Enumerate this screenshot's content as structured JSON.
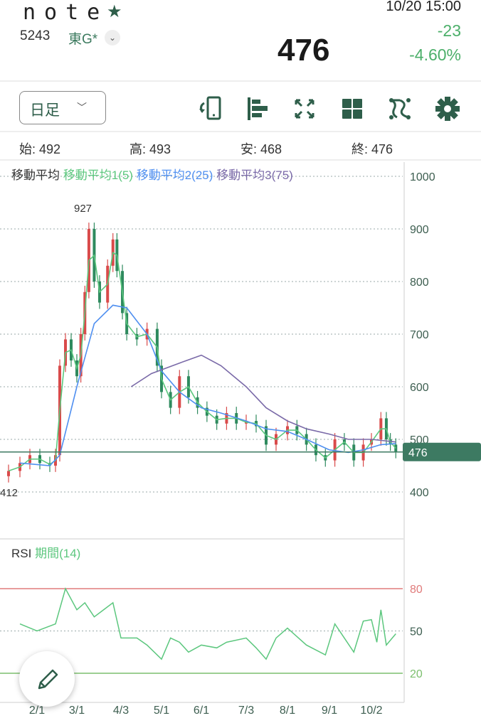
{
  "header": {
    "name": "note",
    "favorite_icon": "star-icon",
    "code": "5243",
    "market": "東G*",
    "market_menu_icon": "chevron-down-icon",
    "price": "476",
    "datetime": "10/20 15:00",
    "change": "-23",
    "change_pct": "-4.60%"
  },
  "toolbar": {
    "period": "日足",
    "period_icon": "chevron-down-icon",
    "icons": [
      "rotate-phone-icon",
      "align-left-icon",
      "fullscreen-icon",
      "grid-layout-icon",
      "chart-draw-icon",
      "gear-icon"
    ]
  },
  "ohlc": {
    "open": "始: 492",
    "high": "高: 493",
    "low": "安: 468",
    "close": "終: 476"
  },
  "colors": {
    "up": "#d94a4a",
    "down": "#2e8a5e",
    "ma1": "#5cc77e",
    "ma2": "#4f8ff0",
    "ma3": "#7a6aa8",
    "accent": "#3d7a62",
    "rsi": "#5cc77e"
  },
  "legend": {
    "title": "移動平均",
    "ma1": "移動平均1(5)",
    "ma2": "移動平均2(25)",
    "ma3": "移動平均3(75)"
  },
  "rsi_legend": {
    "title": "RSI",
    "period": "期間(14)"
  },
  "edit_icon": "pencil-icon",
  "chart_data": {
    "type": "candlestick",
    "ylim": [
      400,
      1000
    ],
    "yticks": [
      "1000",
      "900",
      "800",
      "700",
      "600",
      "500",
      "400"
    ],
    "xticks": [
      "2/1",
      "3/1",
      "4/3",
      "5/1",
      "6/1",
      "7/3",
      "8/1",
      "9/1",
      "10/2"
    ],
    "max_label": "927",
    "min_label": "412",
    "last_label": "476",
    "last": 476,
    "candles": [
      [
        "1/12",
        440
      ],
      [
        "1/20",
        455
      ],
      [
        "1/27",
        470
      ],
      [
        "2/3",
        455
      ],
      [
        "2/10",
        450
      ],
      [
        "2/14",
        470
      ],
      [
        "2/17",
        640
      ],
      [
        "2/21",
        690
      ],
      [
        "2/25",
        650
      ],
      [
        "3/1",
        620
      ],
      [
        "3/4",
        700
      ],
      [
        "3/7",
        780
      ],
      [
        "3/10",
        900
      ],
      [
        "3/14",
        800
      ],
      [
        "3/18",
        760
      ],
      [
        "3/24",
        830
      ],
      [
        "3/28",
        880
      ],
      [
        "3/31",
        820
      ],
      [
        "4/4",
        740
      ],
      [
        "4/7",
        700
      ],
      [
        "4/14",
        690
      ],
      [
        "4/21",
        710
      ],
      [
        "4/28",
        640
      ],
      [
        "5/1",
        590
      ],
      [
        "5/8",
        560
      ],
      [
        "5/15",
        620
      ],
      [
        "5/22",
        580
      ],
      [
        "5/29",
        560
      ],
      [
        "6/5",
        545
      ],
      [
        "6/12",
        530
      ],
      [
        "6/19",
        550
      ],
      [
        "6/26",
        530
      ],
      [
        "7/3",
        535
      ],
      [
        "7/10",
        525
      ],
      [
        "7/17",
        490
      ],
      [
        "7/24",
        510
      ],
      [
        "8/1",
        525
      ],
      [
        "8/8",
        510
      ],
      [
        "8/15",
        490
      ],
      [
        "8/22",
        470
      ],
      [
        "8/29",
        460
      ],
      [
        "9/5",
        500
      ],
      [
        "9/12",
        490
      ],
      [
        "9/19",
        460
      ],
      [
        "9/26",
        490
      ],
      [
        "10/2",
        500
      ],
      [
        "10/9",
        540
      ],
      [
        "10/13",
        500
      ],
      [
        "10/16",
        490
      ],
      [
        "10/20",
        476
      ]
    ],
    "ma2": [
      [
        "1/20",
        455
      ],
      [
        "2/10",
        450
      ],
      [
        "2/17",
        470
      ],
      [
        "3/1",
        600
      ],
      [
        "3/14",
        720
      ],
      [
        "3/28",
        755
      ],
      [
        "4/7",
        750
      ],
      [
        "4/21",
        700
      ],
      [
        "5/1",
        630
      ],
      [
        "5/15",
        590
      ],
      [
        "6/1",
        560
      ],
      [
        "6/15",
        550
      ],
      [
        "7/3",
        535
      ],
      [
        "7/17",
        520
      ],
      [
        "8/1",
        515
      ],
      [
        "8/15",
        500
      ],
      [
        "9/1",
        480
      ],
      [
        "9/15",
        475
      ],
      [
        "9/26",
        480
      ],
      [
        "10/9",
        490
      ],
      [
        "10/20",
        492
      ]
    ],
    "ma3": [
      [
        "4/10",
        600
      ],
      [
        "4/24",
        625
      ],
      [
        "5/15",
        645
      ],
      [
        "6/1",
        660
      ],
      [
        "6/15",
        640
      ],
      [
        "7/3",
        600
      ],
      [
        "7/17",
        560
      ],
      [
        "8/1",
        535
      ],
      [
        "8/15",
        520
      ],
      [
        "9/1",
        510
      ],
      [
        "9/15",
        500
      ],
      [
        "10/2",
        500
      ],
      [
        "10/20",
        495
      ]
    ],
    "rsi": {
      "ylim": [
        0,
        100
      ],
      "levels": [
        80,
        50,
        20
      ],
      "level_labels": [
        "80",
        "50",
        "20"
      ],
      "values": [
        [
          "1/20",
          55
        ],
        [
          "2/1",
          50
        ],
        [
          "2/14",
          55
        ],
        [
          "2/21",
          80
        ],
        [
          "3/1",
          65
        ],
        [
          "3/7",
          70
        ],
        [
          "3/14",
          60
        ],
        [
          "3/21",
          65
        ],
        [
          "3/28",
          70
        ],
        [
          "4/3",
          45
        ],
        [
          "4/14",
          45
        ],
        [
          "4/21",
          40
        ],
        [
          "5/1",
          30
        ],
        [
          "5/8",
          45
        ],
        [
          "5/15",
          42
        ],
        [
          "5/22",
          35
        ],
        [
          "6/1",
          40
        ],
        [
          "6/12",
          38
        ],
        [
          "6/19",
          42
        ],
        [
          "7/3",
          45
        ],
        [
          "7/10",
          38
        ],
        [
          "7/17",
          30
        ],
        [
          "7/24",
          45
        ],
        [
          "8/1",
          52
        ],
        [
          "8/8",
          46
        ],
        [
          "8/15",
          40
        ],
        [
          "8/29",
          33
        ],
        [
          "9/5",
          55
        ],
        [
          "9/12",
          45
        ],
        [
          "9/19",
          35
        ],
        [
          "9/26",
          57
        ],
        [
          "10/2",
          58
        ],
        [
          "10/6",
          42
        ],
        [
          "10/9",
          65
        ],
        [
          "10/13",
          40
        ],
        [
          "10/20",
          48
        ]
      ]
    }
  }
}
